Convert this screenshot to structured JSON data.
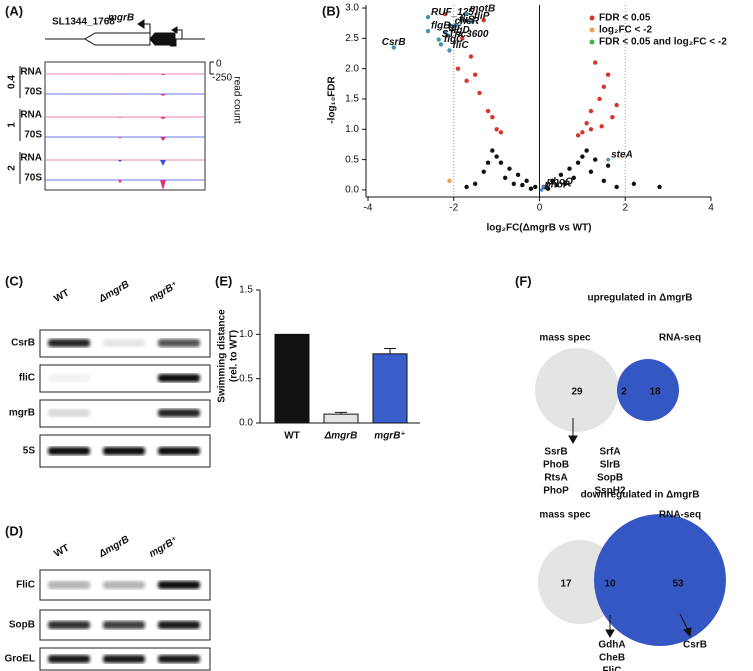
{
  "panels": {
    "A": {
      "label": "(A)",
      "gene_left": "SL1344_1768",
      "gene_right": "mgrB",
      "axis_label": "read count",
      "scale_top": "0",
      "scale_bottom": "-250",
      "tracks": [
        {
          "time": "0.4",
          "rows": [
            "RNA",
            "70S"
          ]
        },
        {
          "time": "1",
          "rows": [
            "RNA",
            "70S"
          ]
        },
        {
          "time": "2",
          "rows": [
            "RNA",
            "70S"
          ]
        }
      ]
    },
    "B": {
      "label": "(B)",
      "x_label": "log₂FC(ΔmgrB vs WT)",
      "y_label": "-log₁₀FDR",
      "xlim": [
        -4,
        4
      ],
      "ylim": [
        -0.1,
        3.05
      ],
      "xticks": [
        -4,
        -2,
        0,
        2,
        4
      ],
      "yticks": [
        {
          "value": 0,
          "label": "0.0"
        },
        {
          "value": 0.5,
          "label": "0.5"
        },
        {
          "value": 1,
          "label": "1.0"
        },
        {
          "value": 1.5,
          "label": "1.5"
        },
        {
          "value": 2,
          "label": "2.0"
        },
        {
          "value": 2.5,
          "label": "2.5"
        },
        {
          "value": 3,
          "label": "3.0"
        }
      ],
      "legend": [
        {
          "name": "FDR < 0.05",
          "color": "#d9342b"
        },
        {
          "name": "log₂FC < -2",
          "color": "#f0a050"
        },
        {
          "name": "FDR < 0.05 and log₂FC < -2",
          "color": "#3cb44b"
        }
      ],
      "groups": [
        {
          "color": "#111111",
          "x": [
            -0.1,
            0.1,
            -0.3,
            0.3,
            -0.5,
            0.5,
            -0.7,
            0.7,
            -0.9,
            0.9,
            -1.0,
            1.0,
            -1.1,
            1.1,
            -0.8,
            0.8,
            -1.3,
            1.2,
            -1.5,
            1.5,
            1.8,
            -1.7,
            0.6,
            -0.6,
            1.3,
            -1.2,
            2.2,
            2.8,
            1.6,
            -0.4,
            0.4,
            -0.2,
            0.2
          ],
          "y": [
            0.05,
            0.05,
            0.15,
            0.15,
            0.25,
            0.25,
            0.35,
            0.35,
            0.45,
            0.45,
            0.55,
            0.55,
            0.65,
            0.65,
            0.2,
            0.2,
            0.3,
            0.3,
            0.1,
            0.15,
            0.05,
            0.05,
            0.1,
            0.1,
            0.5,
            0.45,
            0.1,
            0.05,
            0.4,
            0.08,
            0.08,
            0.02,
            0.02
          ]
        },
        {
          "color": "#d9342b",
          "x": [
            -1.0,
            -1.2,
            -1.4,
            -1.5,
            -1.6,
            -1.8,
            -1.3,
            -1.1,
            -0.9,
            -2.2,
            -1.7,
            -1.9,
            1.0,
            1.1,
            1.2,
            1.4,
            1.5,
            1.6,
            1.3,
            1.8,
            0.9,
            1.2,
            1.7,
            1.45
          ],
          "y": [
            1.0,
            1.3,
            1.6,
            1.9,
            2.2,
            2.5,
            2.8,
            1.2,
            0.95,
            2.9,
            1.8,
            2.0,
            0.95,
            1.1,
            1.3,
            1.5,
            1.7,
            1.9,
            2.1,
            1.4,
            0.9,
            1.0,
            1.2,
            1.05
          ]
        },
        {
          "color": "#f0a050",
          "x": [
            -2.1
          ],
          "y": [
            0.15
          ]
        },
        {
          "color": "#3cb44b",
          "x": [
            -3.4,
            -2.6,
            -2.6,
            -1.7,
            -2.05,
            -1.6,
            -1.95,
            -2.2,
            -2.15,
            -2.35,
            -2.3,
            -2.1
          ],
          "y": [
            2.35,
            2.85,
            2.62,
            2.9,
            2.7,
            2.78,
            2.72,
            2.6,
            2.55,
            2.48,
            2.4,
            2.3
          ]
        }
      ],
      "annotations": [
        {
          "text": "CsrB",
          "x": -3.4,
          "y": 2.35
        },
        {
          "text": "RUF_125",
          "x": -2.6,
          "y": 2.85
        },
        {
          "text": "flgB",
          "x": -2.6,
          "y": 2.62
        },
        {
          "text": "motB",
          "x": -1.7,
          "y": 2.9
        },
        {
          "text": "cheR",
          "x": -2.05,
          "y": 2.7
        },
        {
          "text": "fliP",
          "x": -1.6,
          "y": 2.78
        },
        {
          "text": "fliS",
          "x": -1.95,
          "y": 2.72
        },
        {
          "text": "tar",
          "x": -2.2,
          "y": 2.6
        },
        {
          "text": "flgD",
          "x": -2.15,
          "y": 2.55
        },
        {
          "text": "STnc3600",
          "x": -2.35,
          "y": 2.48
        },
        {
          "text": "flgC",
          "x": -2.3,
          "y": 2.4
        },
        {
          "text": "fliC",
          "x": -2.1,
          "y": 2.3
        },
        {
          "text": "steA",
          "x": 1.6,
          "y": 0.5
        },
        {
          "text": "phoQ",
          "x": 0.1,
          "y": 0.05
        },
        {
          "text": "phoP",
          "x": 0.05,
          "y": 0.0
        }
      ]
    },
    "C": {
      "label": "(C)",
      "lanes": [
        "WT",
        "ΔmgrB",
        "mgrB⁺"
      ],
      "rows": [
        "CsrB",
        "fliC",
        "mgrB",
        "5S"
      ]
    },
    "D": {
      "label": "(D)",
      "lanes": [
        "WT",
        "ΔmgrB",
        "mgrB⁺"
      ],
      "rows": [
        "FliC",
        "SopB",
        "GroEL"
      ]
    },
    "E": {
      "label": "(E)",
      "y_label": [
        "Swimming distance",
        "(rel. to WT)"
      ],
      "categories": [
        "WT",
        "ΔmgrB",
        "mgrB⁺"
      ],
      "values": [
        1.0,
        0.1,
        0.78
      ],
      "errors": [
        0,
        0.02,
        0.06
      ],
      "colors": [
        "#111111",
        "#e4e4e4",
        "#3a5fcd"
      ],
      "ylim": [
        0,
        1.5
      ],
      "yticks": [
        {
          "value": 0,
          "label": "0.0"
        },
        {
          "value": 0.5,
          "label": "0.5"
        },
        {
          "value": 1,
          "label": "1.0"
        },
        {
          "value": 1.5,
          "label": "1.5"
        }
      ]
    },
    "F": {
      "label": "(F)",
      "up": {
        "title": "upregulated in ΔmgrB",
        "left": "mass spec",
        "right": "RNA-seq",
        "counts": [
          29,
          2,
          18
        ],
        "list": [
          "SsrB",
          "PhoB",
          "RtsA",
          "PhoP",
          "SrfA",
          "SlrB",
          "SopB",
          "SspH2"
        ]
      },
      "down": {
        "title": "downregulated in ΔmgrB",
        "left": "mass spec",
        "right": "RNA-seq",
        "counts": [
          17,
          10,
          53
        ],
        "list": [
          "GdhA",
          "CheB",
          "FliC"
        ],
        "right_list": [
          "CsrB"
        ]
      }
    }
  }
}
